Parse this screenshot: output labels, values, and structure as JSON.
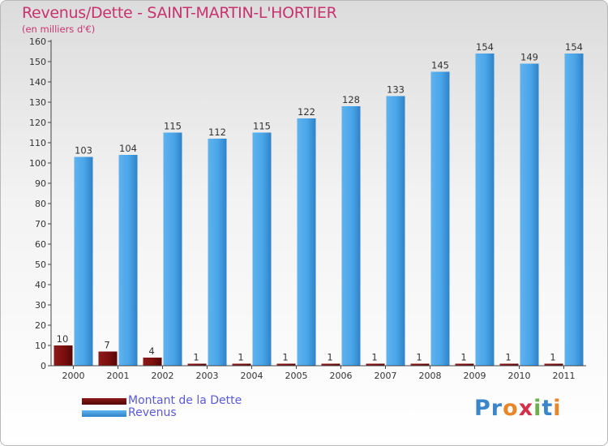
{
  "header": {
    "title": "Revenus/Dette - SAINT-MARTIN-L'HORTIER",
    "unit": "(en milliers d'€)"
  },
  "brand": {
    "logo_text": "Proxiti"
  },
  "colors": {
    "dette": "#7a0d0d",
    "revenus": "#3f9be0",
    "title": "#c8336e",
    "legend_text": "#5a5adc"
  },
  "chart_data": {
    "type": "bar",
    "title": "Revenus/Dette - SAINT-MARTIN-L'HORTIER",
    "ylabel": "(en milliers d'€)",
    "categories": [
      "2000",
      "2001",
      "2002",
      "2003",
      "2004",
      "2005",
      "2006",
      "2007",
      "2008",
      "2009",
      "2010",
      "2011"
    ],
    "series": [
      {
        "name": "Montant de la Dette",
        "values": [
          10,
          7,
          4,
          1,
          1,
          1,
          1,
          1,
          1,
          1,
          1,
          1
        ]
      },
      {
        "name": "Revenus",
        "values": [
          103,
          104,
          115,
          112,
          115,
          122,
          128,
          133,
          145,
          154,
          149,
          154
        ]
      }
    ],
    "ylim": [
      0,
      160
    ],
    "yticks": [
      0,
      10,
      20,
      30,
      40,
      50,
      60,
      70,
      80,
      90,
      100,
      110,
      120,
      130,
      140,
      150,
      160
    ],
    "grid": false,
    "legend": "bottom-left"
  }
}
